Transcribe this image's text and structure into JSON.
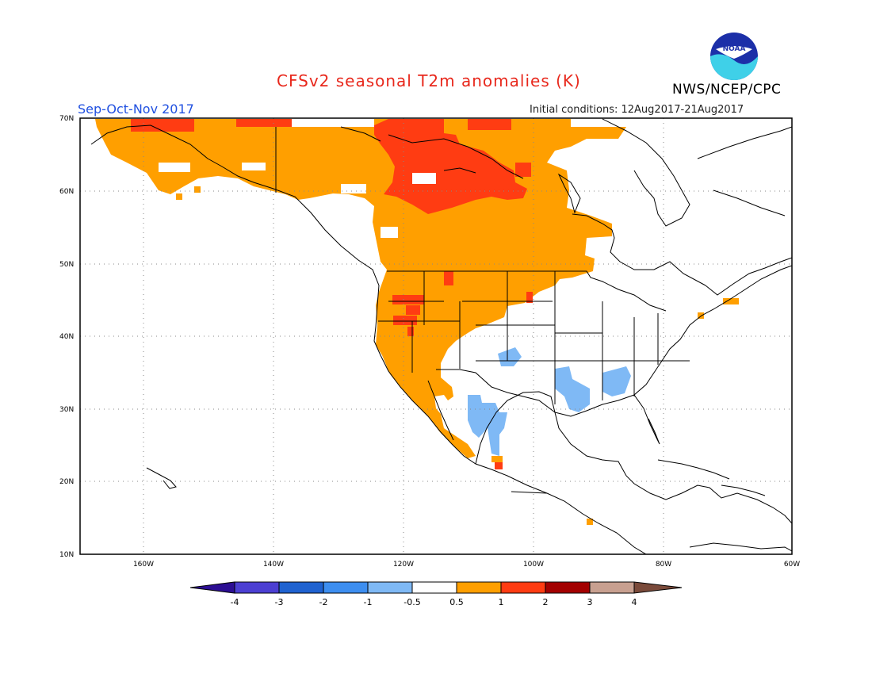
{
  "title": "CFSv2 seasonal T2m anomalies (K)",
  "season": "Sep-Oct-Nov 2017",
  "initial_conditions": "Initial conditions: 12Aug2017-21Aug2017",
  "agency": "NWS/NCEP/CPC",
  "logo_text": "NOAA",
  "axes": {
    "lat_labels": [
      "70N",
      "60N",
      "50N",
      "40N",
      "30N",
      "20N",
      "10N"
    ],
    "lon_labels": [
      "160W",
      "140W",
      "120W",
      "100W",
      "80W",
      "60W"
    ],
    "lat_range": [
      10,
      70
    ],
    "lon_range": [
      -172,
      -60
    ]
  },
  "colorbar": {
    "labels": [
      "-4",
      "-3",
      "-2",
      "-1",
      "-0.5",
      "0.5",
      "1",
      "2",
      "3",
      "4"
    ],
    "colors": [
      "#2c0e93",
      "#4c3fd2",
      "#1f62d0",
      "#3d8ef0",
      "#7fb9f5",
      "#ffffff",
      "#ff9f00",
      "#ff3c12",
      "#a30000",
      "#c8a090",
      "#7a4a3a"
    ]
  },
  "anomaly_regions": [
    {
      "level": "0.5 to 1",
      "color": "#ff9f00",
      "area": "Alaska, western and central Canada, US West, Northern Plains, Baja California"
    },
    {
      "level": "1 to 2",
      "color": "#ff3c12",
      "area": "Northwestern Canada, Arctic coast, parts of Oregon and Idaho"
    },
    {
      "level": "-1 to -0.5",
      "color": "#7fb9f5",
      "area": "New Mexico, northern Mexico, Arkansas, Mississippi, Alabama"
    }
  ]
}
